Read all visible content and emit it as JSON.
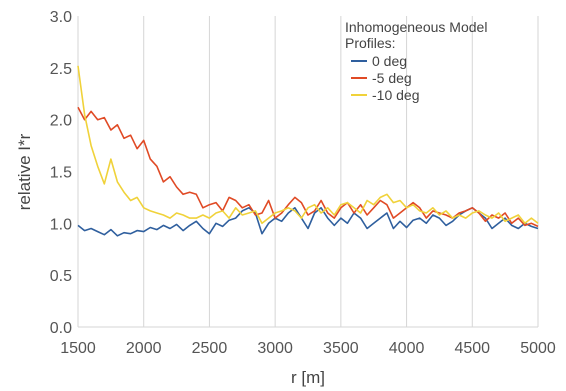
{
  "chart_data": {
    "type": "line",
    "title": "",
    "xlabel": "r [m]",
    "ylabel": "relative I*r",
    "xlim": [
      1500,
      5000
    ],
    "ylim": [
      0,
      3
    ],
    "xticks": [
      1500,
      2000,
      2500,
      3000,
      3500,
      4000,
      4500,
      5000
    ],
    "yticks": [
      "0.0",
      "0.5",
      "1.0",
      "1.5",
      "2.0",
      "2.5",
      "3.0"
    ],
    "grid": "vertical",
    "legend": {
      "title_lines": [
        "Inhomogeneous Model",
        "Profiles:"
      ],
      "position": "top-right"
    },
    "series": [
      {
        "name": "0 deg",
        "color": "#2f5f9e",
        "x": [
          1500,
          1550,
          1600,
          1650,
          1700,
          1750,
          1800,
          1850,
          1900,
          1950,
          2000,
          2050,
          2100,
          2150,
          2200,
          2250,
          2300,
          2350,
          2400,
          2450,
          2500,
          2550,
          2600,
          2650,
          2700,
          2750,
          2800,
          2850,
          2900,
          2950,
          3000,
          3050,
          3100,
          3150,
          3200,
          3250,
          3300,
          3350,
          3400,
          3450,
          3500,
          3550,
          3600,
          3650,
          3700,
          3750,
          3800,
          3850,
          3900,
          3950,
          4000,
          4050,
          4100,
          4150,
          4200,
          4250,
          4300,
          4350,
          4400,
          4450,
          4500,
          4550,
          4600,
          4650,
          4700,
          4750,
          4800,
          4850,
          4900,
          4950,
          5000
        ],
        "y": [
          0.98,
          0.93,
          0.95,
          0.92,
          0.89,
          0.94,
          0.88,
          0.91,
          0.9,
          0.93,
          0.92,
          0.96,
          0.94,
          0.98,
          0.95,
          0.99,
          0.93,
          0.98,
          1.02,
          0.95,
          0.9,
          1.0,
          0.97,
          1.03,
          1.05,
          1.12,
          1.15,
          1.1,
          0.9,
          1.0,
          1.05,
          1.02,
          1.1,
          1.15,
          1.05,
          0.95,
          1.1,
          1.15,
          1.05,
          0.98,
          1.05,
          1.0,
          1.1,
          1.05,
          0.95,
          1.0,
          1.05,
          1.1,
          0.95,
          1.02,
          0.96,
          1.03,
          1.05,
          1.0,
          1.08,
          1.05,
          0.98,
          1.02,
          1.08,
          1.12,
          1.15,
          1.1,
          1.05,
          0.95,
          1.0,
          1.05,
          0.98,
          0.95,
          1.0,
          0.97,
          0.95
        ]
      },
      {
        "name": "-5 deg",
        "color": "#e04a25",
        "x": [
          1500,
          1550,
          1600,
          1650,
          1700,
          1750,
          1800,
          1850,
          1900,
          1950,
          2000,
          2050,
          2100,
          2150,
          2200,
          2250,
          2300,
          2350,
          2400,
          2450,
          2500,
          2550,
          2600,
          2650,
          2700,
          2750,
          2800,
          2850,
          2900,
          2950,
          3000,
          3050,
          3100,
          3150,
          3200,
          3250,
          3300,
          3350,
          3400,
          3450,
          3500,
          3550,
          3600,
          3650,
          3700,
          3750,
          3800,
          3850,
          3900,
          3950,
          4000,
          4050,
          4100,
          4150,
          4200,
          4250,
          4300,
          4350,
          4400,
          4450,
          4500,
          4550,
          4600,
          4650,
          4700,
          4750,
          4800,
          4850,
          4900,
          4950,
          5000
        ],
        "y": [
          2.12,
          2.0,
          2.08,
          2.0,
          2.02,
          1.9,
          1.95,
          1.82,
          1.85,
          1.72,
          1.8,
          1.62,
          1.55,
          1.4,
          1.45,
          1.35,
          1.28,
          1.3,
          1.28,
          1.15,
          1.18,
          1.2,
          1.12,
          1.25,
          1.22,
          1.15,
          1.18,
          1.08,
          1.1,
          1.22,
          1.05,
          1.1,
          1.18,
          1.25,
          1.2,
          1.08,
          1.12,
          1.22,
          1.1,
          1.05,
          1.15,
          1.2,
          1.1,
          1.18,
          1.08,
          1.15,
          1.22,
          1.18,
          1.05,
          1.1,
          1.15,
          1.2,
          1.15,
          1.05,
          1.12,
          1.1,
          1.08,
          1.05,
          1.1,
          1.12,
          1.15,
          1.1,
          1.02,
          1.08,
          1.05,
          1.1,
          1.0,
          1.05,
          0.98,
          1.0,
          0.97
        ]
      },
      {
        "name": "-10 deg",
        "color": "#f0d23a",
        "x": [
          1500,
          1550,
          1600,
          1650,
          1700,
          1750,
          1800,
          1850,
          1900,
          1950,
          2000,
          2050,
          2100,
          2150,
          2200,
          2250,
          2300,
          2350,
          2400,
          2450,
          2500,
          2550,
          2600,
          2650,
          2700,
          2750,
          2800,
          2850,
          2900,
          2950,
          3000,
          3050,
          3100,
          3150,
          3200,
          3250,
          3300,
          3350,
          3400,
          3450,
          3500,
          3550,
          3600,
          3650,
          3700,
          3750,
          3800,
          3850,
          3900,
          3950,
          4000,
          4050,
          4100,
          4150,
          4200,
          4250,
          4300,
          4350,
          4400,
          4450,
          4500,
          4550,
          4600,
          4650,
          4700,
          4750,
          4800,
          4850,
          4900,
          4950,
          5000
        ],
        "y": [
          2.52,
          2.05,
          1.75,
          1.55,
          1.38,
          1.62,
          1.4,
          1.3,
          1.22,
          1.25,
          1.15,
          1.12,
          1.1,
          1.08,
          1.05,
          1.1,
          1.08,
          1.05,
          1.05,
          1.08,
          1.05,
          1.1,
          1.12,
          1.05,
          1.15,
          1.08,
          1.1,
          1.12,
          1.0,
          1.05,
          1.1,
          1.12,
          1.15,
          1.12,
          1.05,
          1.15,
          1.18,
          1.1,
          1.15,
          1.08,
          1.18,
          1.2,
          1.15,
          1.1,
          1.22,
          1.18,
          1.25,
          1.28,
          1.2,
          1.22,
          1.15,
          1.18,
          1.12,
          1.1,
          1.15,
          1.08,
          1.12,
          1.05,
          1.08,
          1.05,
          1.1,
          1.12,
          1.08,
          1.05,
          1.1,
          1.02,
          1.05,
          1.08,
          1.0,
          1.05,
          1.0
        ]
      }
    ]
  }
}
